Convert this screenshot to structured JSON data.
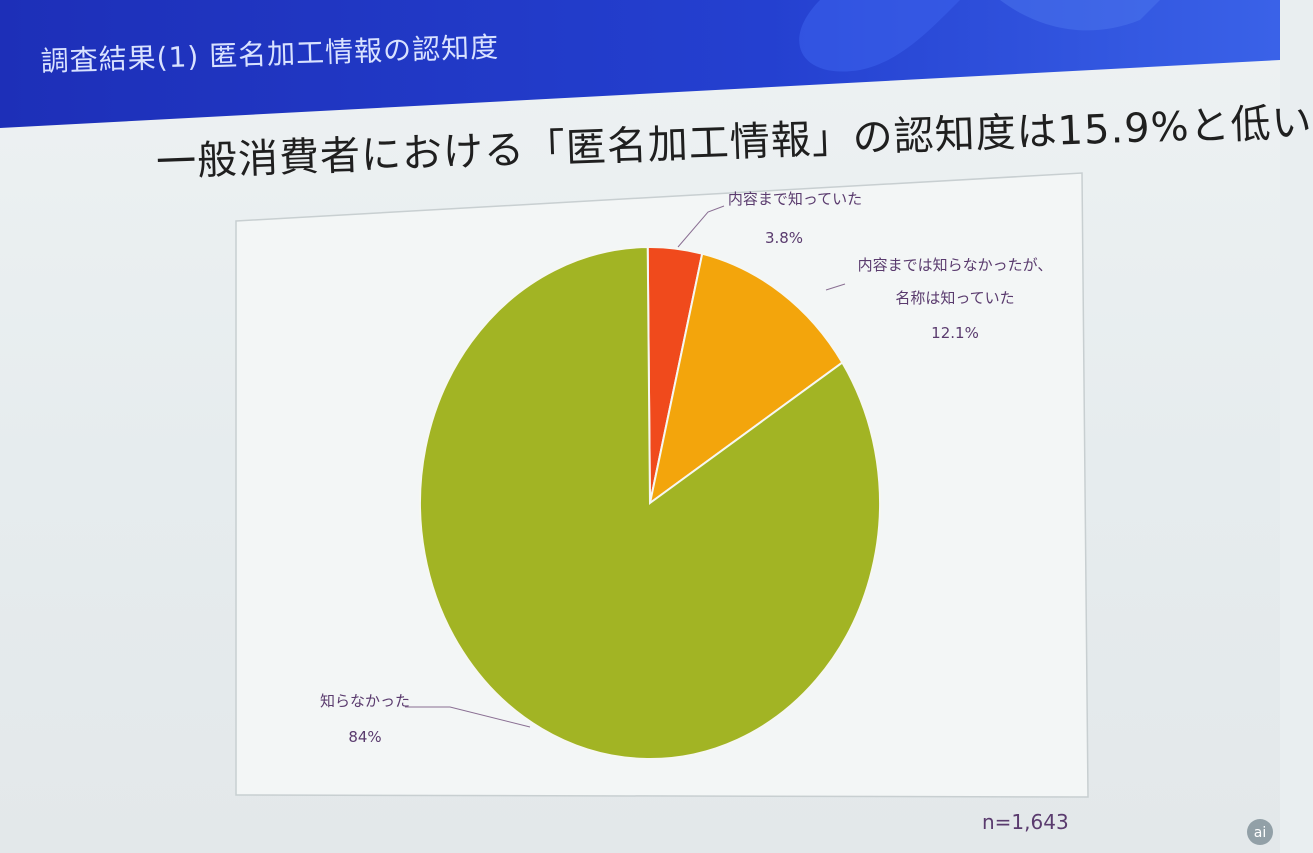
{
  "slide": {
    "title": "調査結果(1) 匿名加工情報の認知度",
    "headline": "一般消費者における「匿名加工情報」の認知度は15.9%と低い",
    "sample_size": "n=1,643"
  },
  "colors": {
    "header_blue": "#2238c4",
    "slice_red": "#f04a1c",
    "slice_orange": "#f3a50c",
    "slice_green": "#a2b424",
    "label_text": "#5a3b6e"
  },
  "chart_data": {
    "type": "pie",
    "slices": [
      {
        "label": "内容まで知っていた",
        "value": 3.8,
        "value_label": "3.8%",
        "color": "#f04a1c"
      },
      {
        "label_lines": [
          "内容までは知らなかったが、",
          "名称は知っていた"
        ],
        "value": 12.1,
        "value_label": "12.1%",
        "color": "#f3a50c"
      },
      {
        "label": "知らなかった",
        "value": 84,
        "value_label": "84%",
        "color": "#a2b424"
      }
    ]
  }
}
